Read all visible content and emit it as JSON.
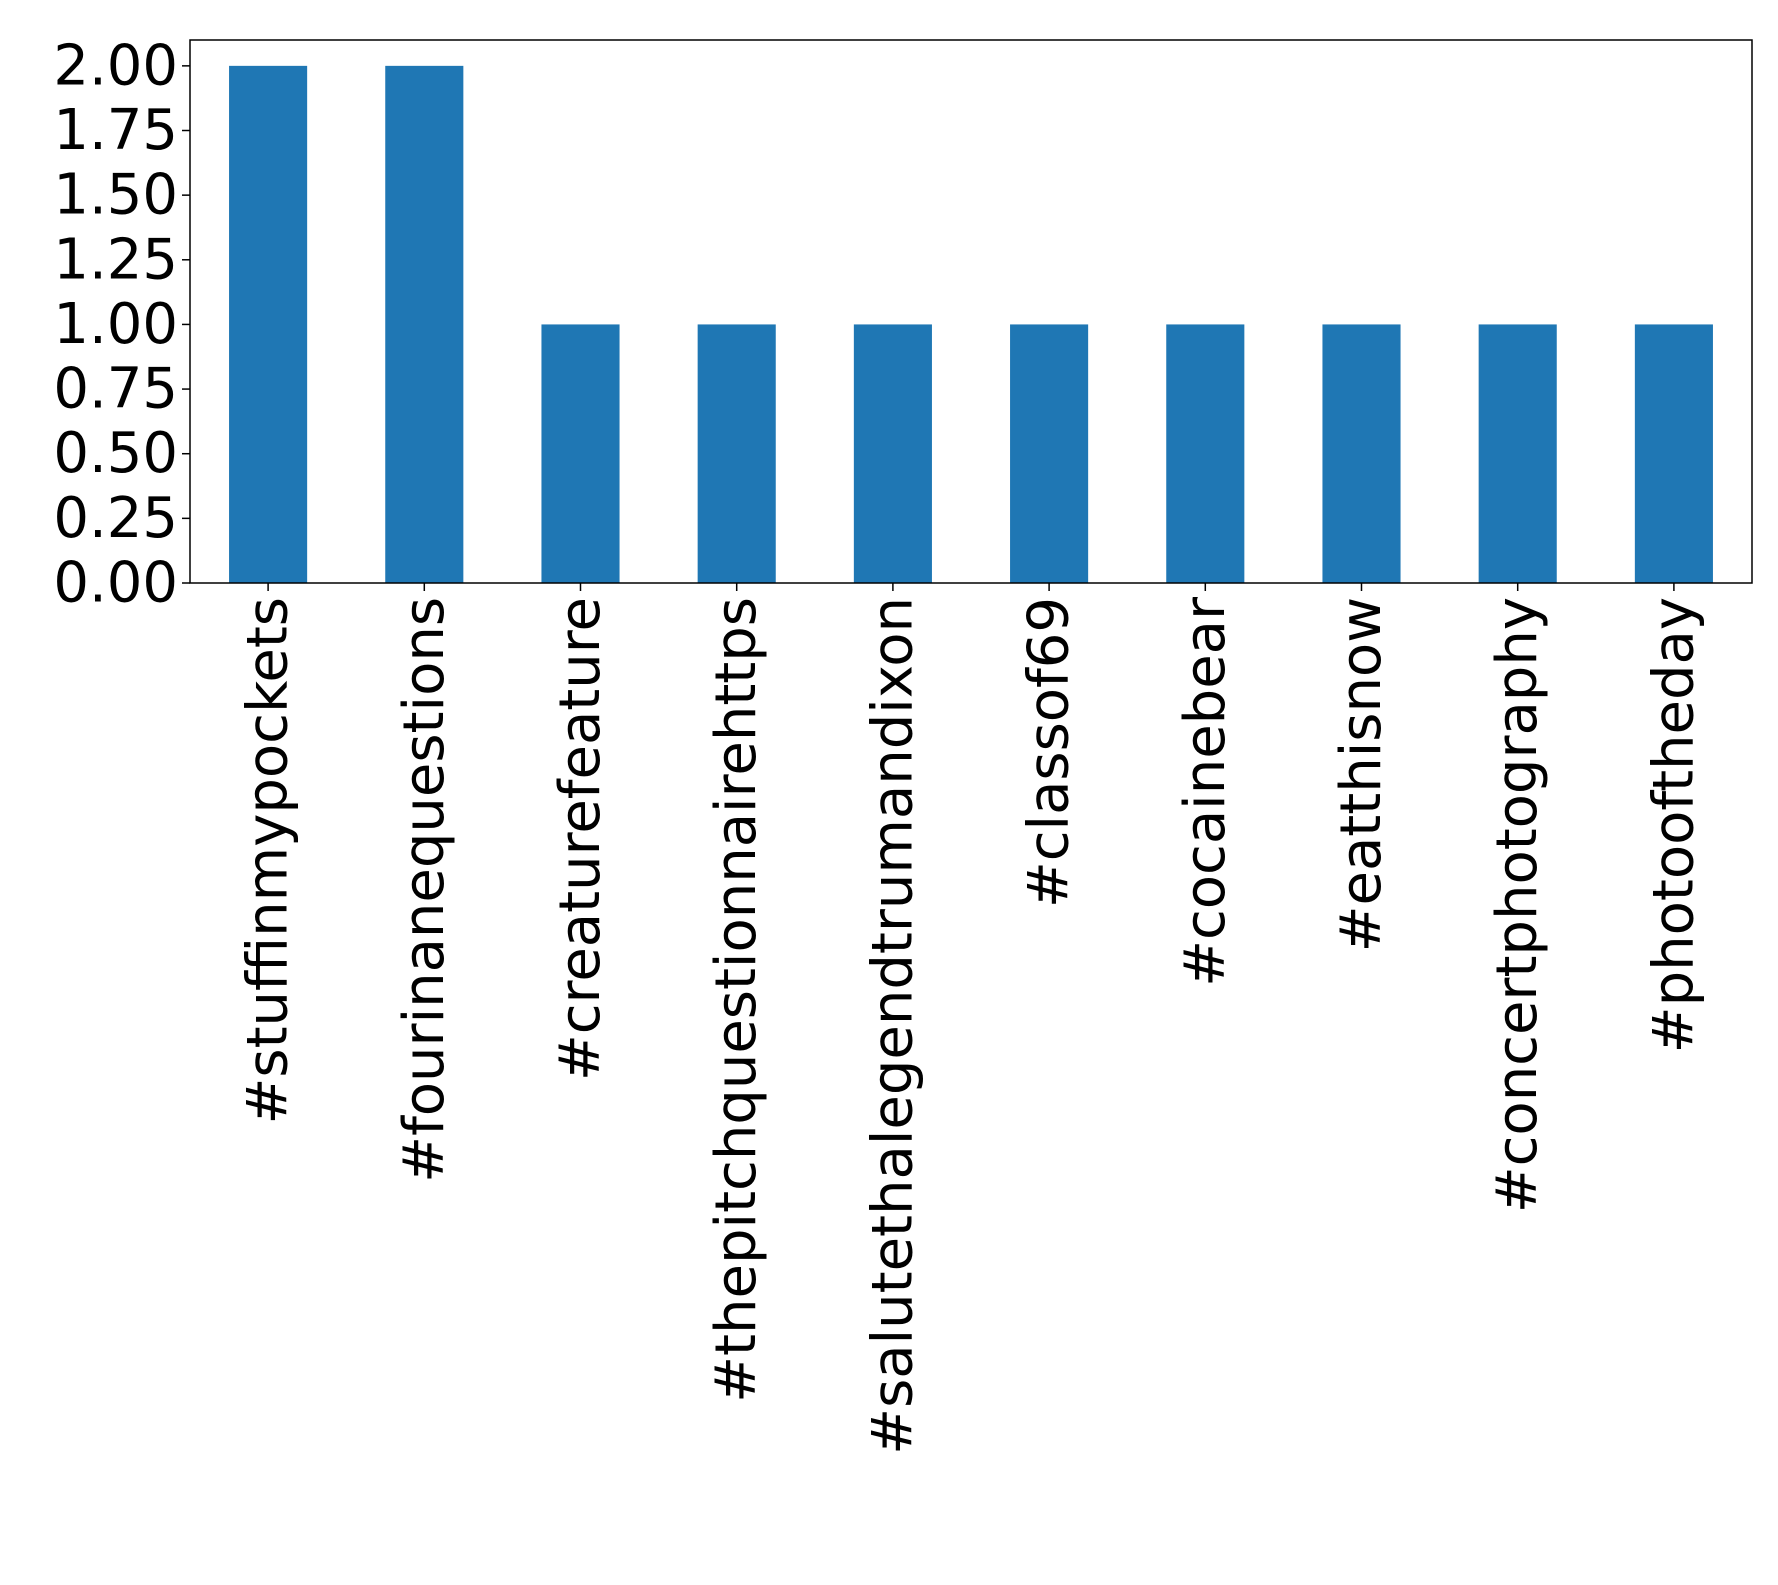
{
  "chart_data": {
    "type": "bar",
    "title": "",
    "xlabel": "",
    "ylabel": "",
    "categories": [
      "#stuffinmypockets",
      "#fourinanequestions",
      "#creaturefeature",
      "#thepitchquestionnairehttps",
      "#salutethalegendtrumandixon",
      "#classof69",
      "#cocainebear",
      "#eatthisnow",
      "#concertphotography",
      "#photooftheday"
    ],
    "values": [
      2,
      2,
      1,
      1,
      1,
      1,
      1,
      1,
      1,
      1
    ],
    "ylim": [
      0,
      2.1
    ],
    "yticks": [
      "0.00",
      "0.25",
      "0.50",
      "0.75",
      "1.00",
      "1.25",
      "1.50",
      "1.75",
      "2.00"
    ],
    "bar_color": "#1f77b4",
    "grid": false,
    "legend": "none"
  }
}
